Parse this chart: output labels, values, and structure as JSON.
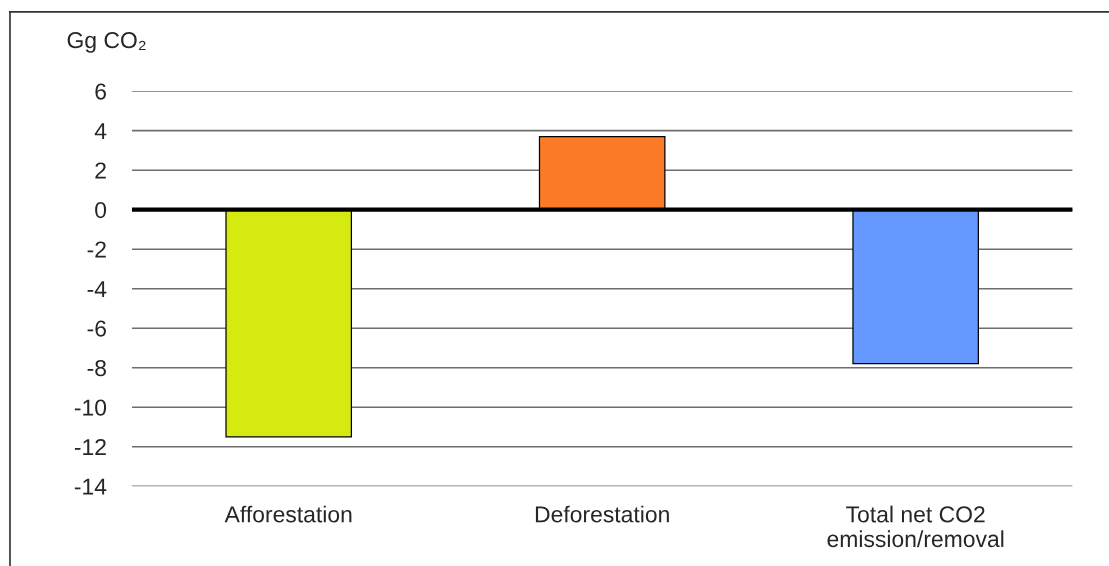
{
  "chart_data": {
    "type": "bar",
    "ylabel": "Gg CO₂",
    "categories": [
      "Afforestation",
      "Deforestation",
      "Total net CO2\nemission/removal"
    ],
    "values": [
      -11.5,
      3.7,
      -7.8
    ],
    "colors": [
      "#d4ea10",
      "#fb7b28",
      "#6699ff"
    ],
    "ylim": [
      -14,
      6
    ],
    "yticks": [
      -14,
      -12,
      -10,
      -8,
      -6,
      -4,
      -2,
      0,
      2,
      4,
      6
    ],
    "grid": "y",
    "ref_lines": [
      {
        "axis": "y",
        "value": 0,
        "color": "#000000"
      }
    ]
  }
}
